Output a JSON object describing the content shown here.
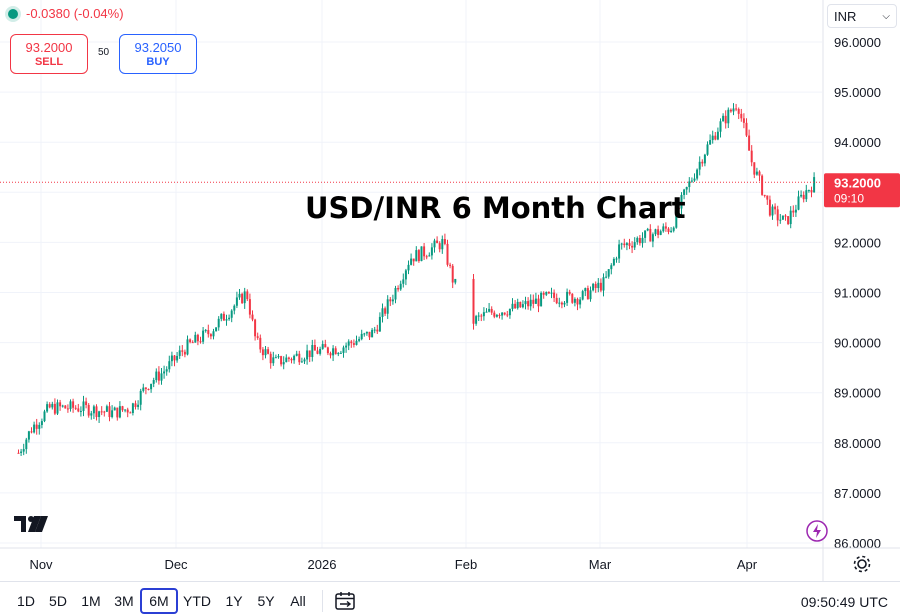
{
  "header": {
    "change": "-0.0380 (-0.04%)",
    "sell_price": "93.2000",
    "sell_label": "SELL",
    "spread": "50",
    "buy_price": "93.2050",
    "buy_label": "BUY",
    "currency": "INR"
  },
  "toolbar": {
    "timeframes": [
      "1D",
      "5D",
      "1M",
      "3M",
      "6M",
      "YTD",
      "1Y",
      "5Y",
      "All"
    ],
    "selected": "6M",
    "clock": "09:50:49 UTC"
  },
  "colors": {
    "up": "#089981",
    "down": "#f23645",
    "grid": "#f0f3fa",
    "price_label_bg": "#f23645",
    "selected_border": "#2b3fd4"
  },
  "icons": [
    "live-dot-icon",
    "chevron-down-icon",
    "calendar-icon",
    "gear-icon",
    "tradingview-logo-icon",
    "lightning-icon"
  ],
  "chart_data": {
    "type": "candlestick",
    "title": "USD/INR 6 Month Chart",
    "y_ticks": [
      "86.0000",
      "87.0000",
      "88.0000",
      "89.0000",
      "90.0000",
      "91.0000",
      "92.0000",
      "93.0000",
      "94.0000",
      "95.0000",
      "96.0000"
    ],
    "ylim": [
      86.0,
      96.0
    ],
    "x_ticks": [
      "Nov",
      "Dec",
      "2026",
      "Feb",
      "Mar",
      "Apr"
    ],
    "last_price": "93.2000",
    "last_price_time": "09:10",
    "approx_path": {
      "dates": [
        "2025-10-27",
        "2025-10-30",
        "2025-11-03",
        "2025-11-10",
        "2025-11-17",
        "2025-11-21",
        "2025-11-25",
        "2025-11-28",
        "2025-12-03",
        "2025-12-08",
        "2025-12-12",
        "2025-12-16",
        "2025-12-18",
        "2025-12-22",
        "2025-12-29",
        "2026-01-05",
        "2026-01-12",
        "2026-01-16",
        "2026-01-20",
        "2026-01-23",
        "2026-01-27",
        "2026-01-29",
        "2026-02-02",
        "2026-02-06",
        "2026-02-12",
        "2026-02-18",
        "2026-02-25",
        "2026-03-02",
        "2026-03-05",
        "2026-03-10",
        "2026-03-16",
        "2026-03-19",
        "2026-03-23",
        "2026-03-26",
        "2026-03-30",
        "2026-04-02",
        "2026-04-06",
        "2026-04-09",
        "2026-04-13",
        "2026-04-15"
      ],
      "close": [
        87.8,
        88.3,
        88.7,
        88.7,
        88.6,
        88.7,
        89.2,
        89.4,
        89.9,
        90.2,
        90.6,
        91.0,
        90.0,
        89.6,
        89.8,
        89.9,
        90.2,
        90.9,
        91.7,
        91.8,
        92.0,
        91.3,
        90.4,
        90.6,
        90.7,
        90.9,
        90.9,
        91.2,
        91.9,
        92.1,
        92.3,
        93.0,
        93.8,
        94.3,
        94.8,
        93.6,
        92.6,
        92.4,
        93.0,
        93.2
      ]
    }
  }
}
